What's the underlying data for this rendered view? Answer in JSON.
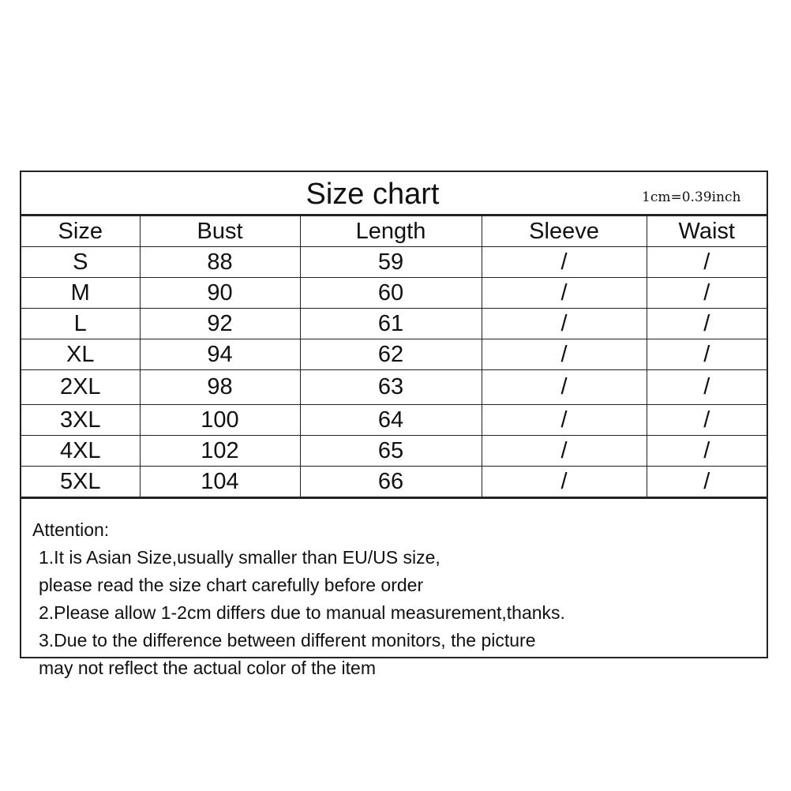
{
  "title": "Size chart",
  "conversion": "1cm=0.39inch",
  "headers": [
    "Size",
    "Bust",
    "Length",
    "Sleeve",
    "Waist"
  ],
  "rows": [
    [
      "S",
      "88",
      "59",
      "/",
      "/"
    ],
    [
      "M",
      "90",
      "60",
      "/",
      "/"
    ],
    [
      "L",
      "92",
      "61",
      "/",
      "/"
    ],
    [
      "XL",
      "94",
      "62",
      "/",
      "/"
    ],
    [
      "2XL",
      "98",
      "63",
      "/",
      "/"
    ],
    [
      "3XL",
      "100",
      "64",
      "/",
      "/"
    ],
    [
      "4XL",
      "102",
      "65",
      "/",
      "/"
    ],
    [
      "5XL",
      "104",
      "66",
      "/",
      "/"
    ]
  ],
  "notes": {
    "heading": "Attention:",
    "lines": [
      "1.It is Asian Size,usually smaller than EU/US size,",
      "please read the size chart carefully before order",
      "2.Please allow 1-2cm differs due to manual measurement,thanks.",
      "3.Due to the difference between different monitors, the picture",
      "may not reflect the actual color of the item"
    ]
  }
}
